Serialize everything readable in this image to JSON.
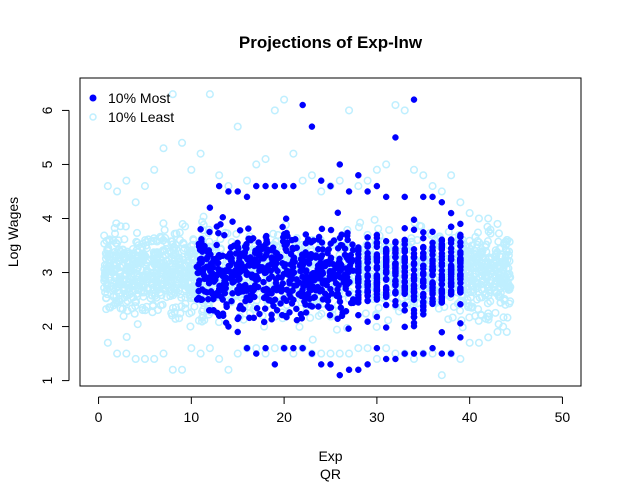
{
  "chart_data": {
    "type": "scatter",
    "title": "Projections of Exp-lnw",
    "xlabel": "Exp",
    "xlabel2": "QR",
    "ylabel": "Log Wages",
    "xlim": [
      -2,
      52
    ],
    "ylim": [
      0.9,
      6.6
    ],
    "xticks": [
      0,
      10,
      20,
      30,
      40,
      50
    ],
    "yticks": [
      1,
      2,
      3,
      4,
      5,
      6
    ],
    "legend_position": "top-left",
    "grid": false,
    "series": [
      {
        "name": "10% Least",
        "marker": "open-circle",
        "color": "#bfefff",
        "x_range": [
          0,
          44
        ],
        "x_mode_bands": [
          [
            0,
            12
          ],
          [
            39,
            44
          ]
        ],
        "x": [
          1,
          2,
          3,
          4,
          5,
          6,
          7,
          8,
          9,
          10,
          11,
          12,
          13,
          14,
          15,
          16,
          17,
          18,
          19,
          20,
          21,
          22,
          23,
          24,
          25,
          26,
          27,
          28,
          29,
          30,
          31,
          32,
          33,
          34,
          35,
          36,
          37,
          38,
          39,
          40,
          41,
          42,
          43,
          44
        ],
        "y_min": [
          1.7,
          1.5,
          1.5,
          1.4,
          1.4,
          1.4,
          1.5,
          1.2,
          1.2,
          1.6,
          1.5,
          1.6,
          1.4,
          1.2,
          1.5,
          1.6,
          1.6,
          1.5,
          1.6,
          1.6,
          1.5,
          1.6,
          1.5,
          1.5,
          1.5,
          1.5,
          1.5,
          1.6,
          1.6,
          1.4,
          1.6,
          1.5,
          1.5,
          1.4,
          1.5,
          1.5,
          1.1,
          1.5,
          1.4,
          1.7,
          1.7,
          1.8,
          1.9,
          1.9
        ],
        "y_max": [
          4.6,
          4.5,
          4.7,
          4.3,
          4.6,
          4.9,
          5.3,
          6.3,
          5.4,
          4.9,
          5.2,
          6.3,
          4.8,
          4.6,
          5.7,
          4.7,
          5.0,
          5.1,
          6.0,
          6.2,
          5.2,
          4.7,
          4.8,
          4.5,
          4.6,
          4.7,
          6.0,
          4.6,
          4.7,
          4.9,
          5.0,
          6.1,
          6.0,
          4.9,
          4.8,
          4.6,
          4.5,
          4.8,
          4.3,
          4.1,
          4.0,
          4.0,
          3.9,
          3.6
        ]
      },
      {
        "name": "10% Most",
        "marker": "filled-circle",
        "color": "#0000ff",
        "x_range": [
          11,
          39
        ],
        "x": [
          11,
          12,
          13,
          14,
          15,
          16,
          17,
          18,
          19,
          20,
          21,
          22,
          23,
          24,
          25,
          26,
          27,
          28,
          29,
          30,
          31,
          32,
          33,
          34,
          35,
          36,
          37,
          38,
          39
        ],
        "y_min": [
          2.5,
          2.3,
          2.2,
          2.0,
          1.9,
          1.6,
          1.5,
          1.6,
          1.3,
          1.6,
          1.6,
          1.6,
          1.5,
          1.3,
          1.3,
          1.1,
          1.2,
          1.2,
          1.3,
          1.6,
          1.4,
          1.4,
          1.5,
          1.5,
          1.5,
          1.6,
          1.5,
          1.5,
          1.8
        ],
        "y_max": [
          3.8,
          4.2,
          4.6,
          4.5,
          4.5,
          4.4,
          4.6,
          4.6,
          4.6,
          4.6,
          4.6,
          6.1,
          5.7,
          4.7,
          4.6,
          5.0,
          4.5,
          4.8,
          4.5,
          4.6,
          4.4,
          5.5,
          4.4,
          6.2,
          4.4,
          4.4,
          4.3,
          4.1,
          3.9
        ],
        "center_y": 3.0
      }
    ]
  }
}
